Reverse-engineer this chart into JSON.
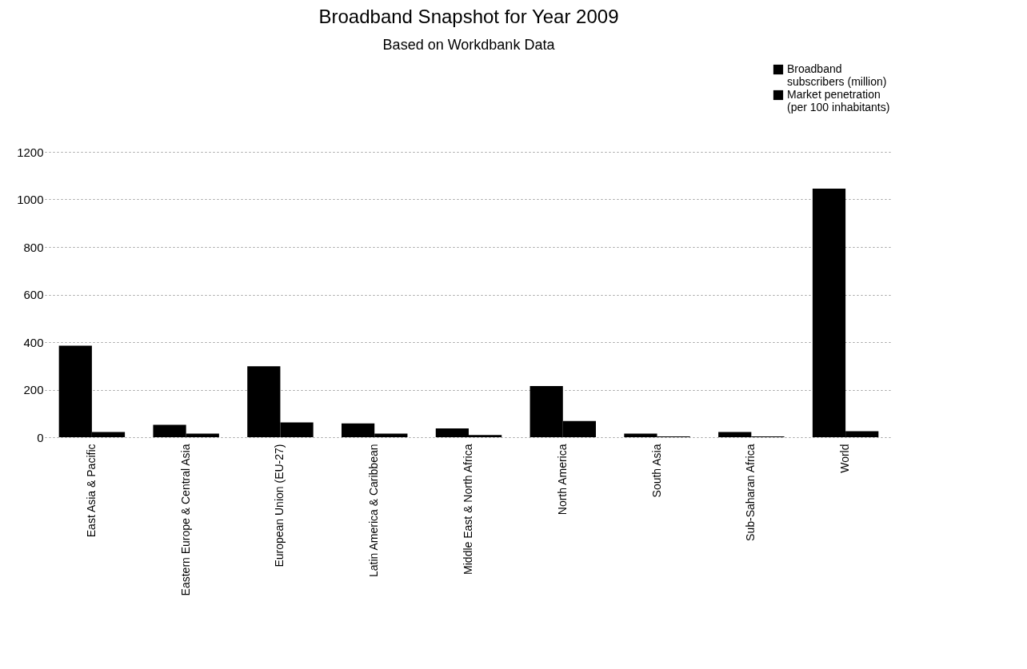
{
  "chart_data": {
    "type": "bar",
    "title": "Broadband Snapshot for Year 2009",
    "subtitle": "Based on Workdbank Data",
    "categories": [
      "East Asia & Pacific",
      "Eastern Europe & Central Asia",
      "European Union (EU-27)",
      "Latin America & Caribbean",
      "Middle East & North Africa",
      "North America",
      "South Asia",
      "Sub-Saharan Africa",
      "World"
    ],
    "series": [
      {
        "name": "Broadband subscribers (million)",
        "color": "#000000",
        "values": [
          385,
          52,
          298,
          58,
          37,
          215,
          15,
          22,
          1045
        ]
      },
      {
        "name": "Market penetration (per 100 inhabitants)",
        "color": "#000000",
        "values": [
          22,
          15,
          62,
          15,
          9,
          68,
          3,
          3,
          25
        ]
      }
    ],
    "ylim": [
      0,
      1200
    ],
    "yticks": [
      0,
      200,
      400,
      600,
      800,
      1000,
      1200
    ],
    "grid": "y",
    "legend": "top right"
  }
}
